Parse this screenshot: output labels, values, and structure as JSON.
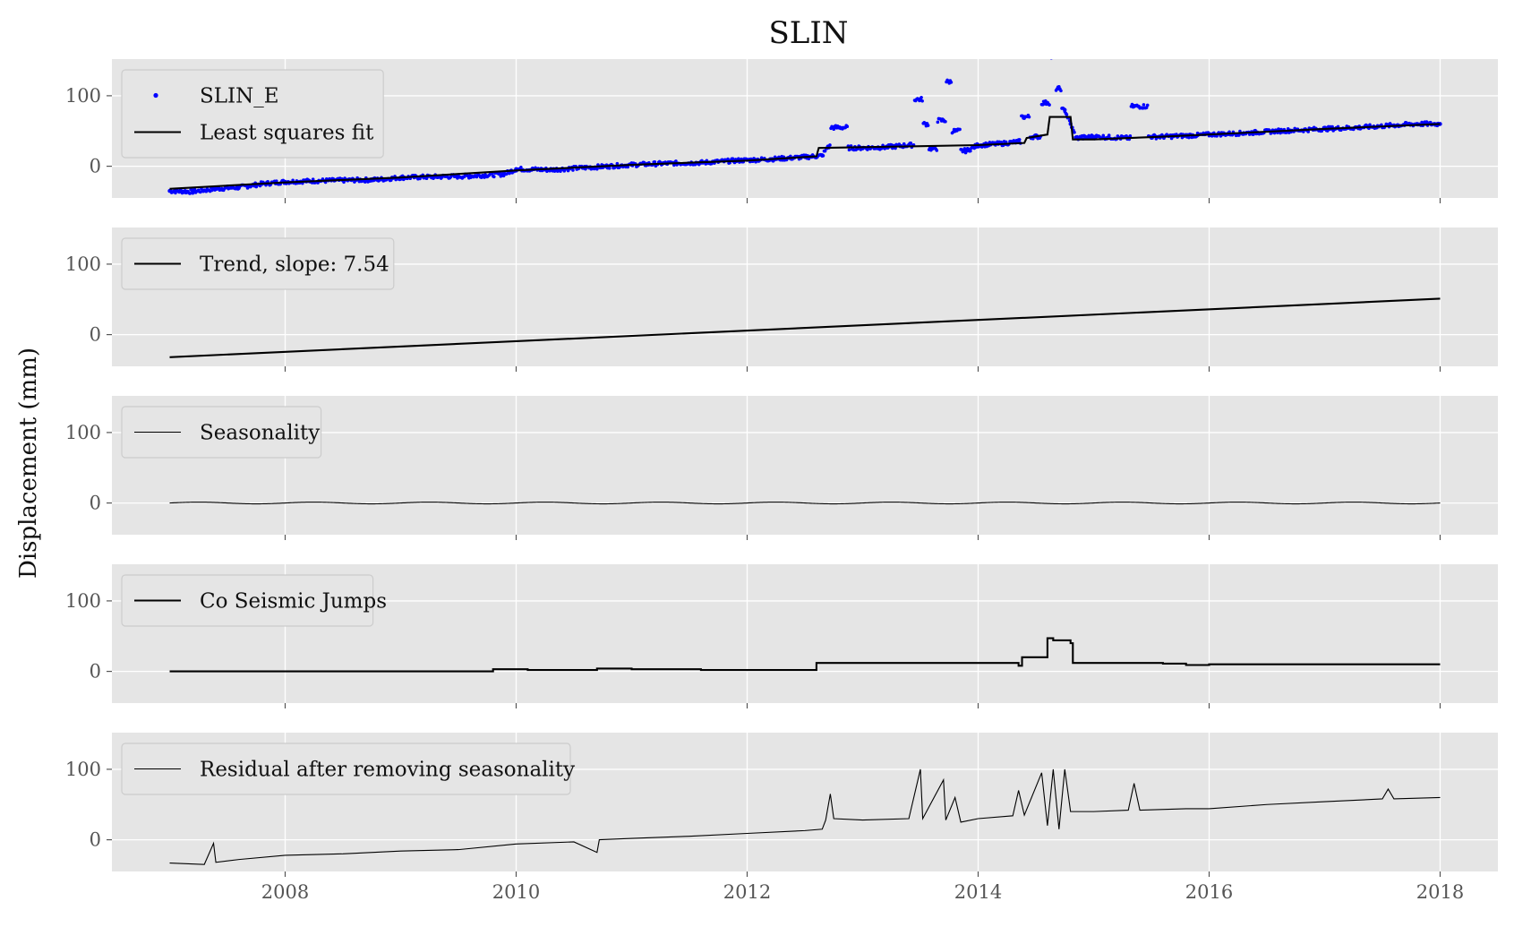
{
  "chart_data": {
    "type": "line",
    "title": "SLIN",
    "ylabel": "Displacement (mm)",
    "xlim": [
      2006.5,
      2018.5
    ],
    "ylim": [
      -45,
      152
    ],
    "x_ticks": [
      2008,
      2010,
      2012,
      2014,
      2016,
      2018
    ],
    "y_ticks": [
      0,
      100
    ],
    "grid": true,
    "legend_placement": "upper-left",
    "colors": {
      "points": "#0000ff",
      "line": "#000000",
      "panel": "#e5e5e5",
      "grid": "#ffffff"
    },
    "panels": [
      {
        "legend": [
          {
            "label": "SLIN_E",
            "marker": "dot",
            "color": "#0000ff"
          },
          {
            "label": "Least squares fit",
            "marker": "line",
            "color": "#000000"
          }
        ],
        "series": [
          {
            "name": "SLIN_E",
            "style": "scatter",
            "color": "#0000ff",
            "points": [
              [
                2007.0,
                -35
              ],
              [
                2007.2,
                -36
              ],
              [
                2007.4,
                -32
              ],
              [
                2007.6,
                -30
              ],
              [
                2007.8,
                -25
              ],
              [
                2008.0,
                -22
              ],
              [
                2008.2,
                -21
              ],
              [
                2008.5,
                -20
              ],
              [
                2008.8,
                -19
              ],
              [
                2009.0,
                -16
              ],
              [
                2009.3,
                -15
              ],
              [
                2009.6,
                -14
              ],
              [
                2009.9,
                -11
              ],
              [
                2010.0,
                -4
              ],
              [
                2010.3,
                -5
              ],
              [
                2010.6,
                -2
              ],
              [
                2010.8,
                0
              ],
              [
                2011.0,
                2
              ],
              [
                2011.3,
                4
              ],
              [
                2011.6,
                5
              ],
              [
                2011.9,
                8
              ],
              [
                2012.2,
                10
              ],
              [
                2012.5,
                13
              ],
              [
                2012.65,
                15
              ],
              [
                2012.7,
                28
              ],
              [
                2012.75,
                55
              ],
              [
                2013.0,
                26
              ],
              [
                2013.2,
                27
              ],
              [
                2013.4,
                30
              ],
              [
                2013.5,
                95
              ],
              [
                2013.55,
                60
              ],
              [
                2013.6,
                25
              ],
              [
                2013.7,
                65
              ],
              [
                2013.75,
                120
              ],
              [
                2013.8,
                50
              ],
              [
                2013.9,
                22
              ],
              [
                2014.0,
                30
              ],
              [
                2014.2,
                32
              ],
              [
                2014.35,
                35
              ],
              [
                2014.4,
                70
              ],
              [
                2014.5,
                42
              ],
              [
                2014.6,
                90
              ],
              [
                2014.65,
                155
              ],
              [
                2014.7,
                110
              ],
              [
                2014.75,
                80
              ],
              [
                2014.8,
                60
              ],
              [
                2014.85,
                40
              ],
              [
                2015.0,
                42
              ],
              [
                2015.3,
                40
              ],
              [
                2015.35,
                85
              ],
              [
                2015.6,
                42
              ],
              [
                2015.9,
                44
              ],
              [
                2016.0,
                45
              ],
              [
                2016.3,
                47
              ],
              [
                2016.6,
                50
              ],
              [
                2017.0,
                53
              ],
              [
                2017.3,
                55
              ],
              [
                2017.6,
                58
              ],
              [
                2017.8,
                60
              ],
              [
                2018.0,
                60
              ]
            ]
          },
          {
            "name": "Least squares fit",
            "style": "line",
            "color": "#000000",
            "points": [
              [
                2007.0,
                -32
              ],
              [
                2008.0,
                -23
              ],
              [
                2009.0,
                -16
              ],
              [
                2010.0,
                -6
              ],
              [
                2011.0,
                2
              ],
              [
                2012.0,
                8
              ],
              [
                2012.6,
                14
              ],
              [
                2012.62,
                26
              ],
              [
                2013.0,
                27
              ],
              [
                2014.0,
                30
              ],
              [
                2014.4,
                33
              ],
              [
                2014.42,
                40
              ],
              [
                2014.6,
                45
              ],
              [
                2014.62,
                70
              ],
              [
                2014.8,
                70
              ],
              [
                2014.82,
                38
              ],
              [
                2015.0,
                38
              ],
              [
                2015.6,
                42
              ],
              [
                2016.0,
                45
              ],
              [
                2017.0,
                53
              ],
              [
                2018.0,
                60
              ]
            ]
          }
        ]
      },
      {
        "legend": [
          {
            "label": "Trend, slope: 7.54",
            "marker": "line",
            "color": "#000000"
          }
        ],
        "series": [
          {
            "name": "Trend, slope: 7.54",
            "style": "line",
            "color": "#000000",
            "points": [
              [
                2007.0,
                -32
              ],
              [
                2018.0,
                51
              ]
            ]
          }
        ]
      },
      {
        "legend": [
          {
            "label": "Seasonality",
            "marker": "thinline",
            "color": "#000000"
          }
        ],
        "series": [
          {
            "name": "Seasonality",
            "style": "thinline",
            "color": "#000000",
            "amplitude": 1.2,
            "period_years": 1.0,
            "x_range": [
              2007.0,
              2018.0
            ]
          }
        ]
      },
      {
        "legend": [
          {
            "label": "Co Seismic Jumps",
            "marker": "line",
            "color": "#000000"
          }
        ],
        "series": [
          {
            "name": "Co Seismic Jumps",
            "style": "step",
            "color": "#000000",
            "points": [
              [
                2007.0,
                0
              ],
              [
                2009.8,
                0
              ],
              [
                2009.8,
                3
              ],
              [
                2010.1,
                3
              ],
              [
                2010.1,
                2
              ],
              [
                2010.7,
                2
              ],
              [
                2010.7,
                4
              ],
              [
                2011.0,
                4
              ],
              [
                2011.0,
                3
              ],
              [
                2011.6,
                3
              ],
              [
                2011.6,
                2
              ],
              [
                2012.6,
                2
              ],
              [
                2012.6,
                12
              ],
              [
                2014.35,
                12
              ],
              [
                2014.35,
                8
              ],
              [
                2014.38,
                8
              ],
              [
                2014.38,
                20
              ],
              [
                2014.6,
                20
              ],
              [
                2014.6,
                47
              ],
              [
                2014.65,
                47
              ],
              [
                2014.65,
                44
              ],
              [
                2014.8,
                44
              ],
              [
                2014.8,
                40
              ],
              [
                2014.82,
                40
              ],
              [
                2014.82,
                12
              ],
              [
                2015.6,
                12
              ],
              [
                2015.6,
                11
              ],
              [
                2015.8,
                11
              ],
              [
                2015.8,
                9
              ],
              [
                2016.0,
                9
              ],
              [
                2016.0,
                10
              ],
              [
                2018.0,
                10
              ]
            ]
          }
        ]
      },
      {
        "legend": [
          {
            "label": "Residual after removing seasonality",
            "marker": "thinline",
            "color": "#000000"
          }
        ],
        "series": [
          {
            "name": "Residual after removing seasonality",
            "style": "thinline",
            "color": "#000000",
            "points": [
              [
                2007.0,
                -33
              ],
              [
                2007.3,
                -35
              ],
              [
                2007.38,
                -5
              ],
              [
                2007.4,
                -32
              ],
              [
                2007.6,
                -28
              ],
              [
                2008.0,
                -22
              ],
              [
                2008.5,
                -20
              ],
              [
                2009.0,
                -16
              ],
              [
                2009.5,
                -14
              ],
              [
                2010.0,
                -6
              ],
              [
                2010.5,
                -3
              ],
              [
                2010.7,
                -18
              ],
              [
                2010.72,
                0
              ],
              [
                2011.0,
                2
              ],
              [
                2011.5,
                5
              ],
              [
                2012.0,
                9
              ],
              [
                2012.5,
                13
              ],
              [
                2012.65,
                15
              ],
              [
                2012.68,
                28
              ],
              [
                2012.72,
                65
              ],
              [
                2012.75,
                30
              ],
              [
                2013.0,
                28
              ],
              [
                2013.4,
                30
              ],
              [
                2013.5,
                100
              ],
              [
                2013.52,
                30
              ],
              [
                2013.7,
                85
              ],
              [
                2013.72,
                28
              ],
              [
                2013.8,
                60
              ],
              [
                2013.85,
                25
              ],
              [
                2014.0,
                30
              ],
              [
                2014.3,
                34
              ],
              [
                2014.35,
                70
              ],
              [
                2014.4,
                35
              ],
              [
                2014.55,
                95
              ],
              [
                2014.6,
                20
              ],
              [
                2014.65,
                100
              ],
              [
                2014.7,
                15
              ],
              [
                2014.75,
                100
              ],
              [
                2014.8,
                40
              ],
              [
                2015.0,
                40
              ],
              [
                2015.3,
                42
              ],
              [
                2015.35,
                80
              ],
              [
                2015.4,
                42
              ],
              [
                2015.8,
                44
              ],
              [
                2016.0,
                44
              ],
              [
                2016.5,
                50
              ],
              [
                2017.0,
                54
              ],
              [
                2017.5,
                58
              ],
              [
                2017.55,
                72
              ],
              [
                2017.6,
                58
              ],
              [
                2018.0,
                60
              ]
            ]
          }
        ]
      }
    ]
  }
}
